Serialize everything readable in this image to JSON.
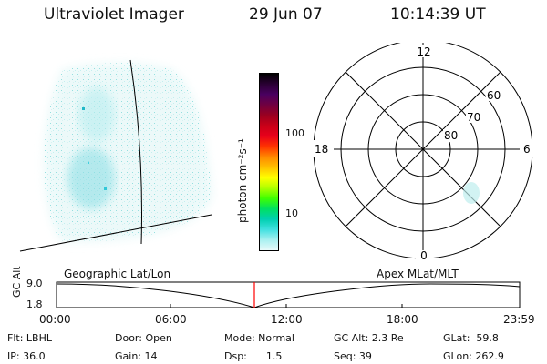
{
  "header": {
    "instrument": "Ultraviolet Imager",
    "date": "29 Jun 07",
    "time": "10:14:39 UT"
  },
  "colorbar": {
    "label": "photon cm⁻²s⁻¹",
    "ticks": [
      "100",
      "10"
    ],
    "colors": [
      "#000000",
      "#2a0033",
      "#4a0060",
      "#700040",
      "#9a0020",
      "#c80018",
      "#e8001a",
      "#ff3300",
      "#ff8800",
      "#ffc000",
      "#ffff00",
      "#b0ff00",
      "#40ff00",
      "#00e060",
      "#00d0b0",
      "#40e0e0",
      "#a8f0f0",
      "#e8fafa"
    ]
  },
  "polar_plot": {
    "mlt_labels": [
      "12",
      "18",
      "6",
      "0"
    ],
    "lat_labels": [
      "60",
      "70",
      "80"
    ]
  },
  "timeline": {
    "left_title": "Geographic Lat/Lon",
    "right_title": "Apex MLat/MLT",
    "ylabel": "GC Alt",
    "y_ticks": [
      "9.0",
      "1.8"
    ],
    "x_ticks": [
      "00:00",
      "06:00",
      "12:00",
      "18:00",
      "23:59"
    ],
    "marker_color": "#ff0000"
  },
  "info": {
    "flt": "Flt: LBHL",
    "ip": "IP: 36.0",
    "door": "Door: Open",
    "gain": "Gain: 14",
    "mode": "Mode: Normal",
    "dsp": "Dsp:      1.5",
    "gc_alt": "GC Alt: 2.3 Re",
    "seq": "Seq: 39",
    "glat": "GLat:  59.8",
    "glon": "GLon: 262.9"
  }
}
